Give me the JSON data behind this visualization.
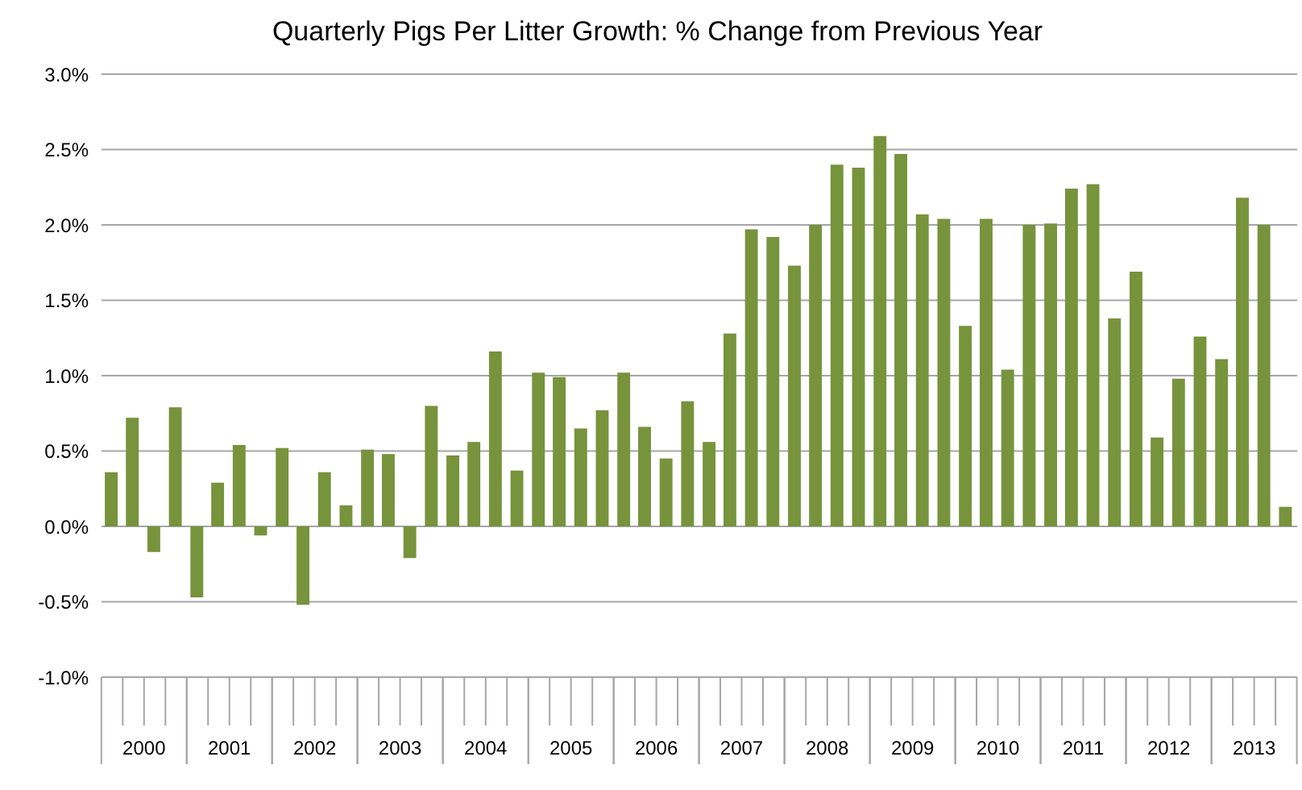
{
  "chart_data": {
    "type": "bar",
    "title": "Quarterly Pigs Per Litter Growth: % Change from Previous Year",
    "x": [
      "2000-02-15",
      "2000-05-15",
      "2000-08-15",
      "2000-11-15",
      "2001-02-15",
      "2001-05-15",
      "2001-08-15",
      "2001-11-15",
      "2002-02-15",
      "2002-05-15",
      "2002-08-15",
      "2002-11-15",
      "2003-02-15",
      "2003-05-15",
      "2003-08-15",
      "2003-11-15",
      "2004-02-15",
      "2004-05-15",
      "2004-08-15",
      "2004-11-15",
      "2005-02-15",
      "2005-05-15",
      "2005-08-15",
      "2005-11-15",
      "2006-02-15",
      "2006-05-15",
      "2006-08-15",
      "2006-11-15",
      "2007-02-15",
      "2007-05-15",
      "2007-08-15",
      "2007-11-15",
      "2008-02-15",
      "2008-05-15",
      "2008-08-15",
      "2008-11-15",
      "2009-02-15",
      "2009-05-15",
      "2009-08-15",
      "2009-11-15",
      "2010-02-15",
      "2010-05-15",
      "2010-08-15",
      "2010-11-15",
      "2011-02-15",
      "2011-05-15",
      "2011-08-15",
      "2011-11-15",
      "2012-02-15",
      "2012-05-15",
      "2012-08-15",
      "2012-11-15",
      "2013-02-15",
      "2013-05-15",
      "2013-08-15",
      "2013-11-15"
    ],
    "values": [
      0.36,
      0.72,
      -0.17,
      0.79,
      -0.47,
      0.29,
      0.54,
      -0.06,
      0.52,
      -0.52,
      0.36,
      0.14,
      0.51,
      0.48,
      -0.21,
      0.8,
      0.47,
      0.56,
      1.16,
      0.37,
      1.02,
      0.99,
      0.65,
      0.77,
      1.02,
      0.66,
      0.45,
      0.83,
      0.56,
      1.28,
      1.97,
      1.92,
      1.73,
      2.0,
      2.4,
      2.38,
      2.59,
      2.47,
      2.07,
      2.04,
      1.33,
      2.04,
      1.04,
      2.0,
      2.01,
      2.24,
      2.27,
      1.38,
      1.69,
      0.59,
      0.98,
      1.26,
      1.11,
      2.18,
      2.0,
      0.13
    ],
    "color": "#77933c",
    "xlim": [
      "2000-01-01",
      "2014-01-01"
    ],
    "xticks": [
      {
        "value": "2000-07-01",
        "label": "2000"
      },
      {
        "value": "2001-07-01",
        "label": "2001"
      },
      {
        "value": "2002-07-01",
        "label": "2002"
      },
      {
        "value": "2003-07-01",
        "label": "2003"
      },
      {
        "value": "2004-07-01",
        "label": "2004"
      },
      {
        "value": "2005-07-01",
        "label": "2005"
      },
      {
        "value": "2006-07-01",
        "label": "2006"
      },
      {
        "value": "2007-07-01",
        "label": "2007"
      },
      {
        "value": "2008-07-01",
        "label": "2008"
      },
      {
        "value": "2009-07-01",
        "label": "2009"
      },
      {
        "value": "2010-07-01",
        "label": "2010"
      },
      {
        "value": "2011-07-01",
        "label": "2011"
      },
      {
        "value": "2012-07-01",
        "label": "2012"
      },
      {
        "value": "2013-07-01",
        "label": "2013"
      }
    ],
    "ylim": [
      -1,
      3
    ],
    "yticks": [
      {
        "value": -1,
        "label": "-1.0%"
      },
      {
        "value": -0.5,
        "label": "-0.5%"
      },
      {
        "value": 0,
        "label": "0.0%"
      },
      {
        "value": 0.5,
        "label": "0.5%"
      },
      {
        "value": 1,
        "label": "1.0%"
      },
      {
        "value": 1.5,
        "label": "1.5%"
      },
      {
        "value": 2,
        "label": "2.0%"
      },
      {
        "value": 2.5,
        "label": "2.5%"
      },
      {
        "value": 3,
        "label": "3.0%"
      }
    ],
    "grid": "y"
  }
}
